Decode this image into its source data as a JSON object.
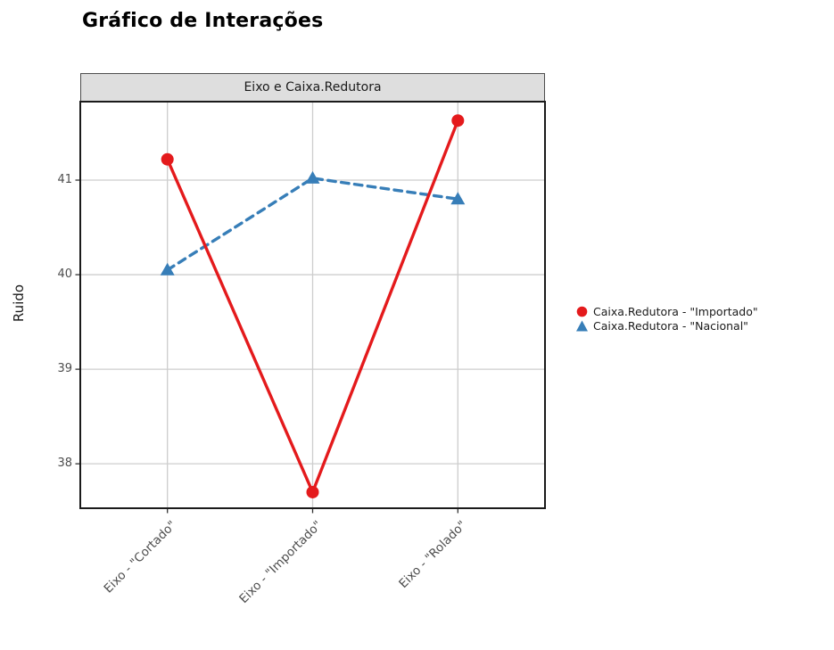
{
  "title": "Gráfico de Interações",
  "panel": {
    "strip_label": "Eixo e Caixa.Redutora"
  },
  "chart_data": {
    "type": "line",
    "title": "Gráfico de Interações",
    "panel_label": "Eixo e Caixa.Redutora",
    "categories": [
      "Eixo - \"Cortado\"",
      "Eixo - \"Importado\"",
      "Eixo - \"Rolado\""
    ],
    "series": [
      {
        "name": "Caixa.Redutora - \"Importado\"",
        "values": [
          41.22,
          37.7,
          41.63
        ],
        "color": "#e41a1c",
        "marker": "circle",
        "line_style": "solid"
      },
      {
        "name": "Caixa.Redutora - \"Nacional\"",
        "values": [
          40.05,
          41.02,
          40.8
        ],
        "color": "#377eb8",
        "marker": "triangle",
        "line_style": "dashed"
      }
    ],
    "xlabel": "",
    "ylabel": "Ruido",
    "y_ticks": [
      38,
      39,
      40,
      41
    ],
    "ylim": [
      37.53,
      41.83
    ],
    "grid": true,
    "legend_position": "right"
  },
  "colors": {
    "series_importado": "#e41a1c",
    "series_nacional": "#377eb8",
    "gridline": "#cdcdcd",
    "panel_border": "#1a1a1a",
    "strip_fill": "#dedede",
    "tick_text": "#4d4d4d"
  }
}
